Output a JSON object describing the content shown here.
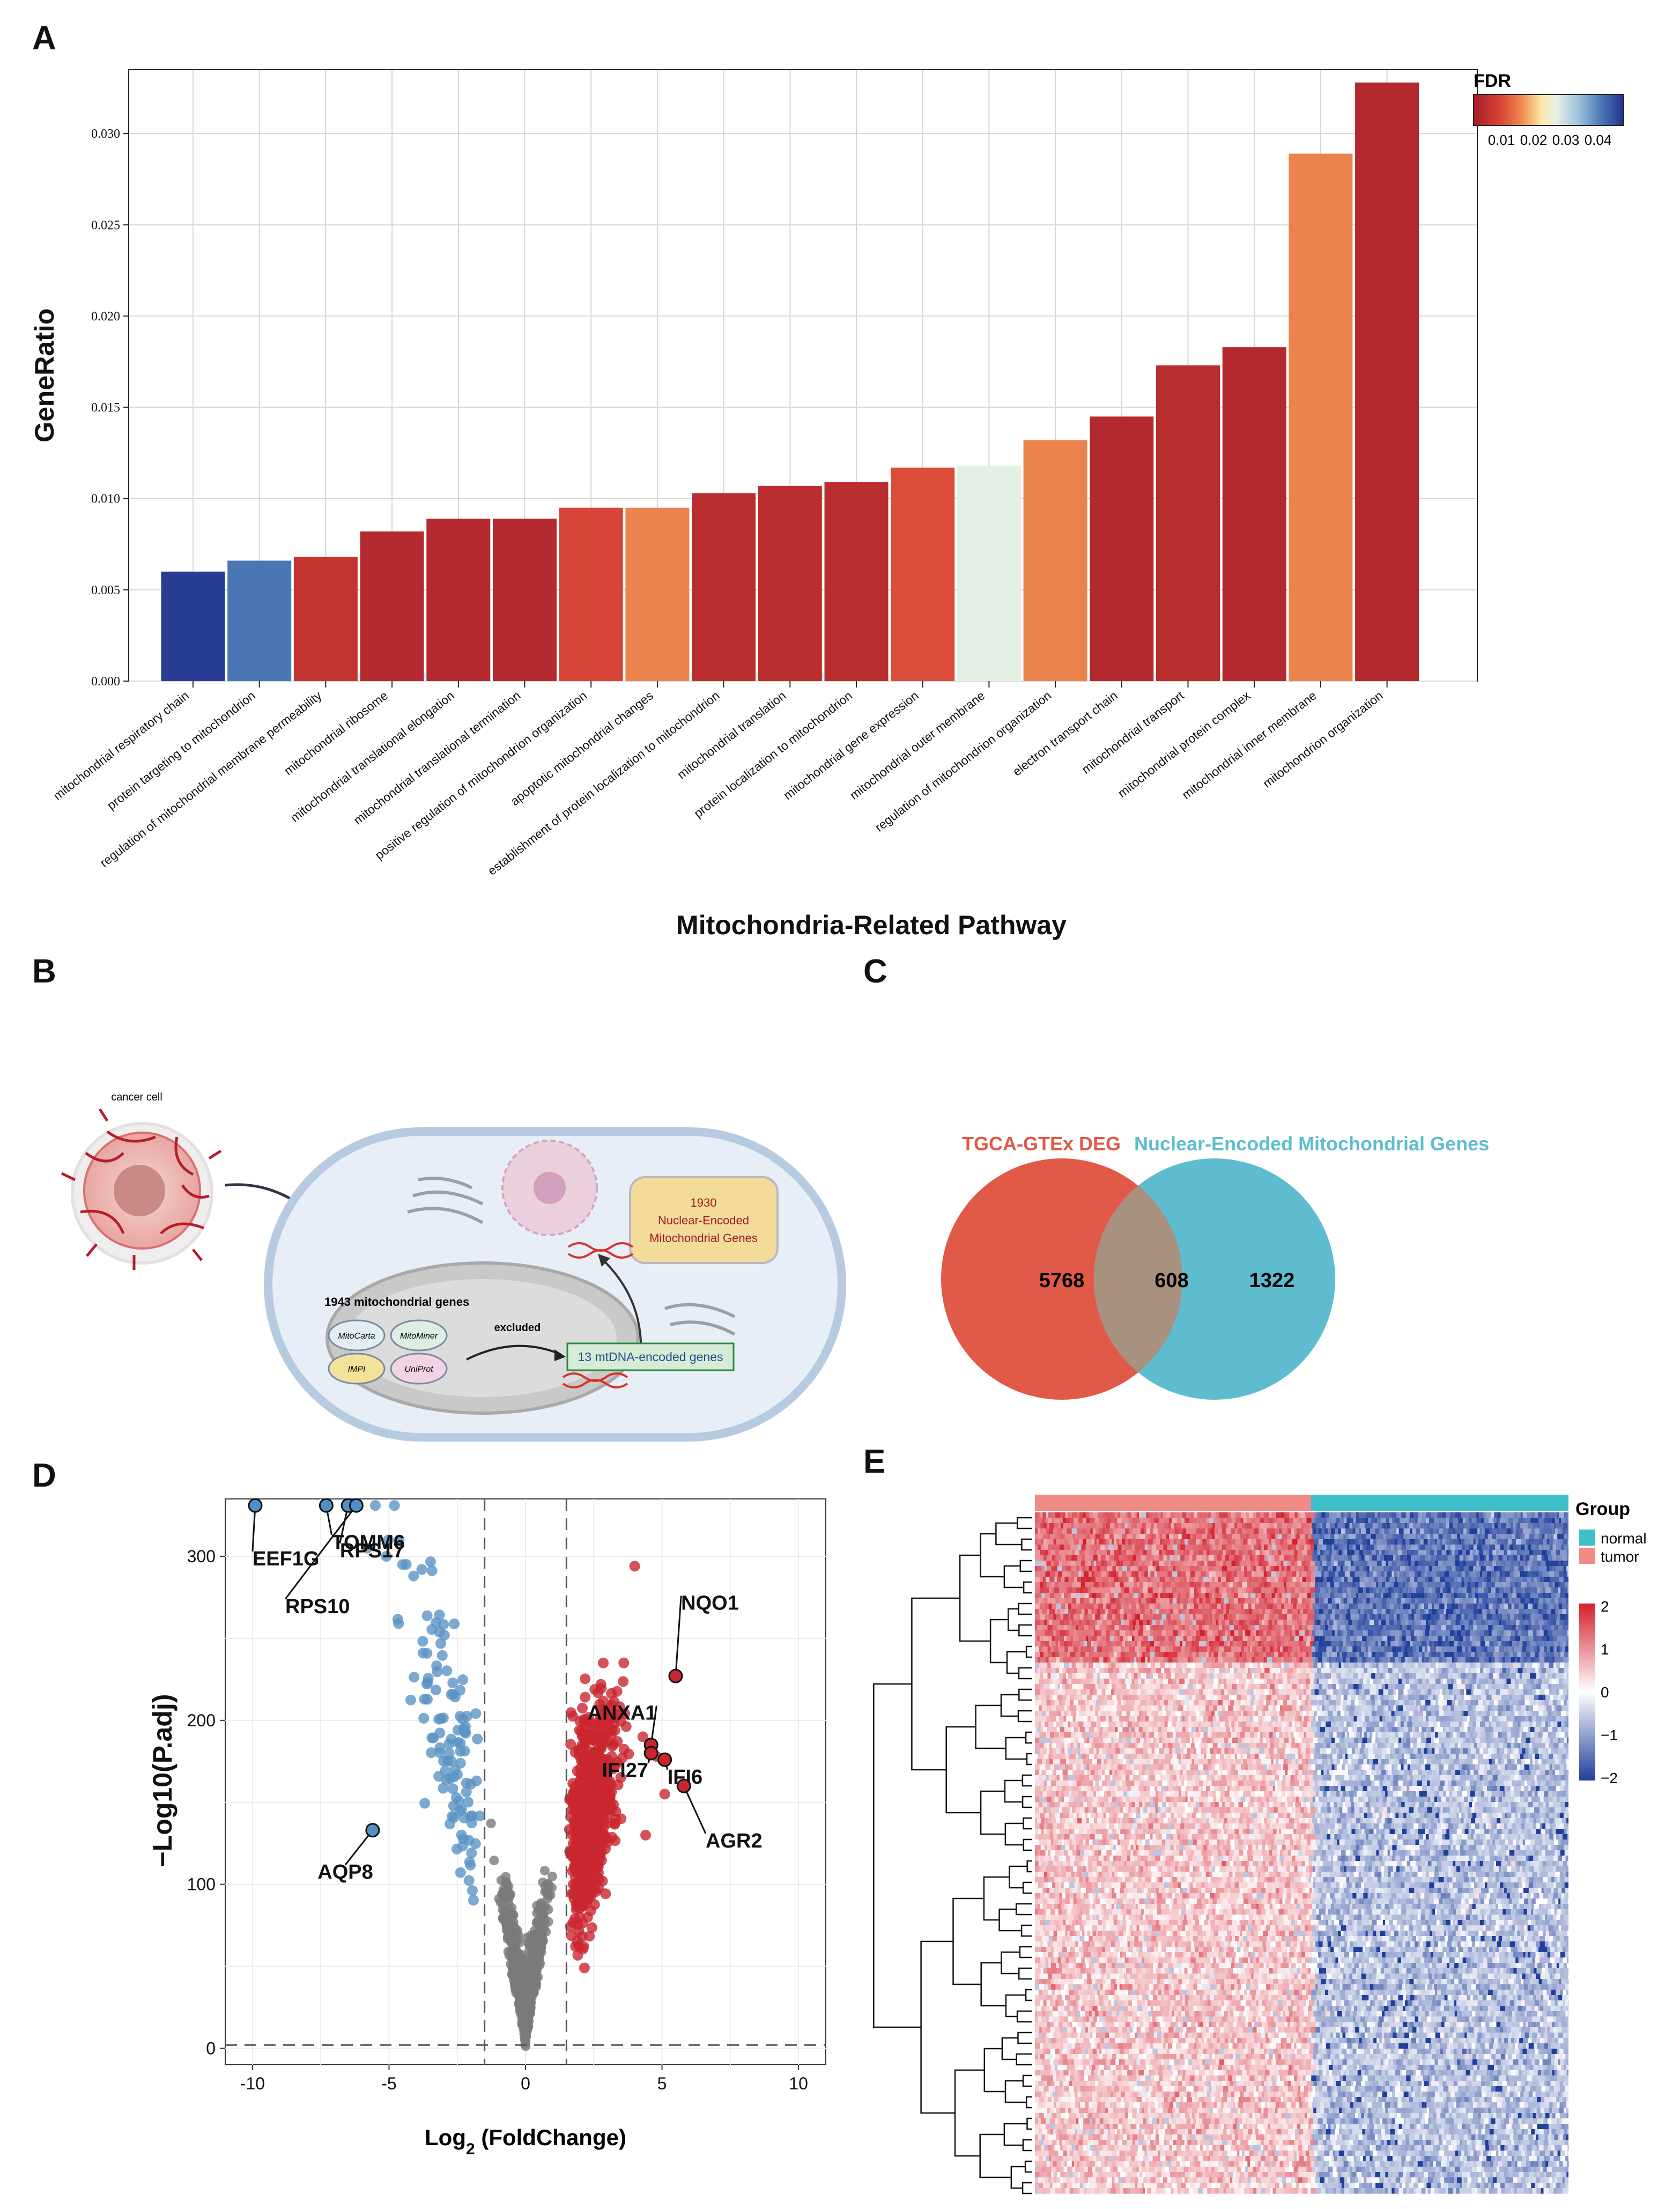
{
  "panels": {
    "a": "A",
    "b": "B",
    "c": "C",
    "d": "D",
    "e": "E"
  },
  "chart_data": [
    {
      "type": "bar",
      "panel": "A",
      "title": "",
      "xlabel": "Mitochondria-Related Pathway",
      "ylabel": "GeneRatio",
      "ylim": [
        0,
        0.0335
      ],
      "yticks": [
        "0.000",
        "0.005",
        "0.010",
        "0.015",
        "0.020",
        "0.025",
        "0.030"
      ],
      "categories": [
        "mitochondrial respiratory chain",
        "protein targeting to mitochondrion",
        "regulation of mitochondrial membrane permeability",
        "mitochondrial ribosome",
        "mitochondrial translational elongation",
        "mitochondrial translational termination",
        "positive regulation of mitochondrion organization",
        "apoptotic mitochondrial changes",
        "establishment of protein localization to mitochondrion",
        "mitochondrial translation",
        "protein localization to mitochondrion",
        "mitochondrial gene expression",
        "mitochondrial outer membrane",
        "regulation of mitochondrion organization",
        "electron transport chain",
        "mitochondrial transport",
        "mitochondrial protein complex",
        "mitochondrial inner membrane",
        "mitochondrion organization"
      ],
      "values": [
        0.006,
        0.0066,
        0.0068,
        0.0082,
        0.0089,
        0.0089,
        0.0095,
        0.0095,
        0.0103,
        0.0107,
        0.0109,
        0.0117,
        0.0118,
        0.0132,
        0.0145,
        0.0173,
        0.0183,
        0.0289,
        0.0328
      ],
      "fdr": [
        0.045,
        0.04,
        0.003,
        0.0015,
        0.0015,
        0.0015,
        0.005,
        0.012,
        0.002,
        0.002,
        0.002,
        0.006,
        0.025,
        0.012,
        0.0015,
        0.002,
        0.0015,
        0.012,
        0.0015
      ],
      "legend": {
        "title": "FDR",
        "ticks": [
          "0.01",
          "0.02",
          "0.03",
          "0.04"
        ],
        "placement": "top-right"
      }
    },
    {
      "type": "venn",
      "panel": "C",
      "sets": [
        {
          "name": "TGCA-GTEx DEG",
          "only": "5768",
          "color": "#e05a47"
        },
        {
          "name": "Nuclear-Encoded Mitochondrial Genes",
          "only": "1322",
          "color": "#5fbccf"
        }
      ],
      "intersection": "608"
    },
    {
      "type": "scatter",
      "panel": "D",
      "xlabel_main": "Log",
      "xlabel_sub": "2",
      "xlabel_rest": " (FoldChange)",
      "ylabel": "−Log10(P.adj)",
      "xlim": [
        -11,
        11
      ],
      "ylim": [
        -10,
        335
      ],
      "xticks": [
        "-10",
        "-5",
        "0",
        "5",
        "10"
      ],
      "yticks": [
        "0",
        "100",
        "200",
        "300"
      ],
      "thresholds": {
        "logfc": 1.5,
        "padj_line": 2
      },
      "labeled_genes": [
        {
          "gene": "EEF1G",
          "x": -9.9,
          "y": 331,
          "group": "down"
        },
        {
          "gene": "TOMM6",
          "x": -7.3,
          "y": 331,
          "group": "down"
        },
        {
          "gene": "RPS17",
          "x": -6.5,
          "y": 331,
          "group": "down"
        },
        {
          "gene": "RPS10",
          "x": -6.2,
          "y": 331,
          "group": "down"
        },
        {
          "gene": "AQP8",
          "x": -5.6,
          "y": 133,
          "group": "down"
        },
        {
          "gene": "NQO1",
          "x": 5.5,
          "y": 227,
          "group": "up"
        },
        {
          "gene": "ANXA1",
          "x": 4.6,
          "y": 185,
          "group": "up"
        },
        {
          "gene": "IFI27",
          "x": 4.6,
          "y": 180,
          "group": "up"
        },
        {
          "gene": "IFI6",
          "x": 5.1,
          "y": 176,
          "group": "up"
        },
        {
          "gene": "AGR2",
          "x": 5.8,
          "y": 160,
          "group": "up"
        }
      ]
    },
    {
      "type": "heatmap",
      "panel": "E",
      "groups": [
        {
          "name": "normal",
          "color": "#3fbfc9"
        },
        {
          "name": "tumor",
          "color": "#ef8c85"
        }
      ],
      "legend_title": "Group",
      "scale_ticks": [
        "2",
        "1",
        "0",
        "−1",
        "−2"
      ],
      "columns": "tumor samples left, normal samples right"
    }
  ],
  "diagram_b": {
    "cancer_cell": "cancer cell",
    "nuclear_box_line1": "1930",
    "nuclear_box_line2": "Nuclear-Encoded",
    "nuclear_box_line3": "Mitochondrial Genes",
    "mito_genes": "1943 mitochondrial genes",
    "db1": "MitoCarta",
    "db2": "MitoMiner",
    "db3": "IMPI",
    "db4": "UniProt",
    "excluded": "excluded",
    "mtdna_box": "13 mtDNA-encoded genes"
  },
  "colors": {
    "bar_dark_red": "#a51d2a",
    "bar_orange": "#ec834d",
    "down": "#5b93c4",
    "up": "#c9272f",
    "ns": "#7b7b7b"
  }
}
